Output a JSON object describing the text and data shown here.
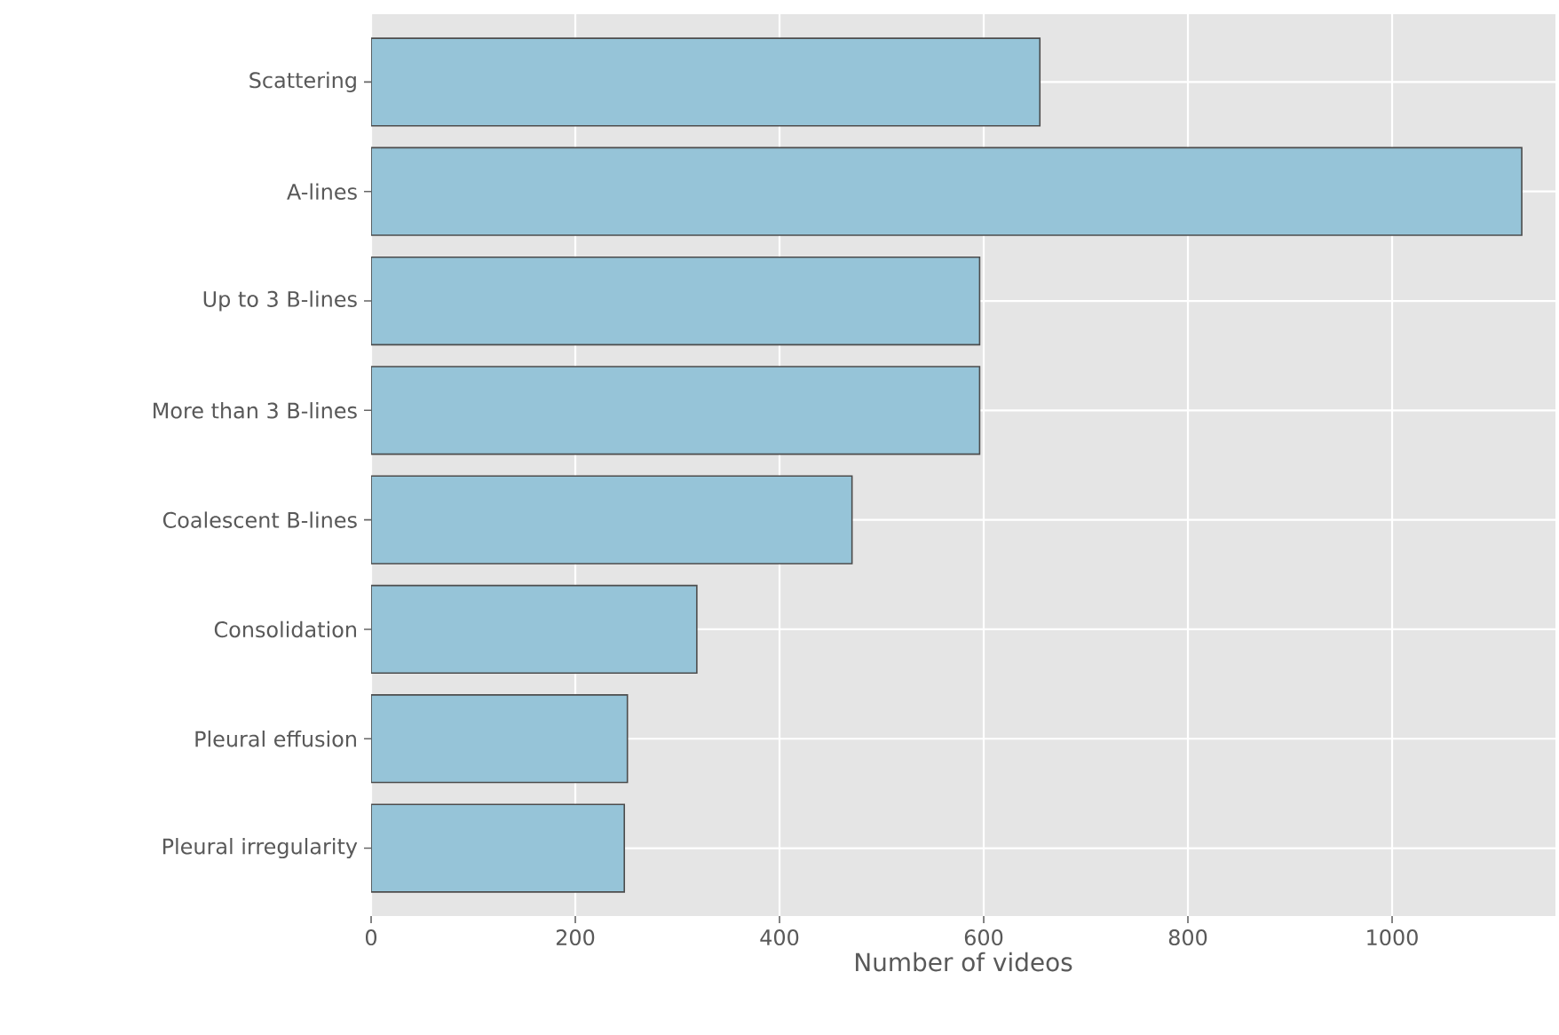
{
  "chart_data": {
    "type": "bar",
    "orientation": "horizontal",
    "xlabel": "Number of videos",
    "categories": [
      "Scattering",
      "A-lines",
      "Up to 3 B-lines",
      "More than 3 B-lines",
      "Coalescent B-lines",
      "Consolidation",
      "Pleural effusion",
      "Pleural irregularity"
    ],
    "values": [
      655,
      1127,
      596,
      596,
      471,
      319,
      251,
      248
    ],
    "color": "#96c4d8",
    "xlim": [
      0,
      1160
    ],
    "xticks": [
      0,
      200,
      400,
      600,
      800,
      1000
    ],
    "grid": true
  }
}
